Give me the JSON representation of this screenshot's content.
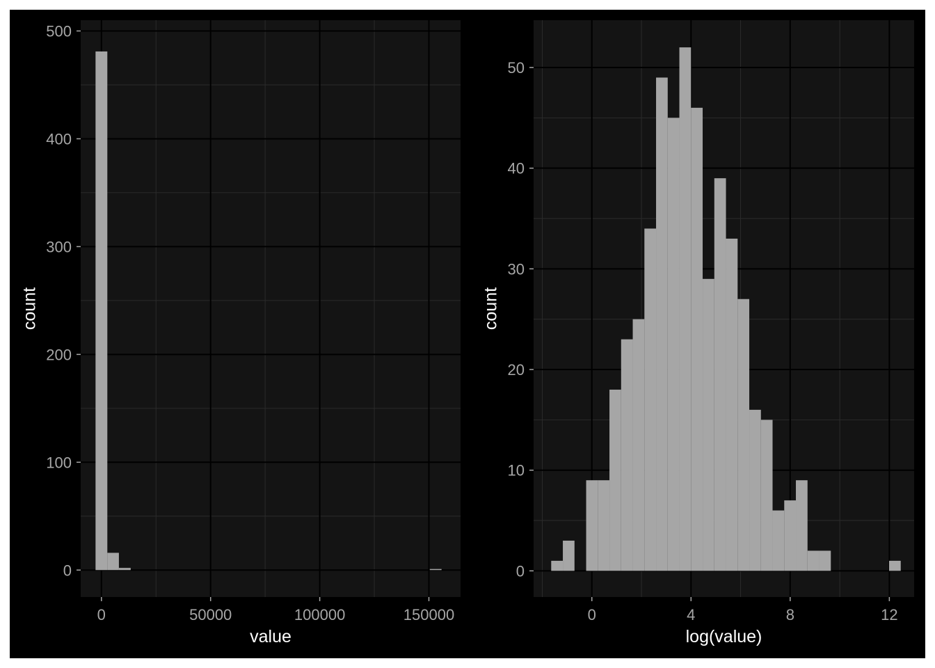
{
  "chart_data": [
    {
      "type": "histogram",
      "xlabel": "value",
      "ylabel": "count",
      "xlim": [
        -9500,
        164500
      ],
      "ylim": [
        -25,
        510
      ],
      "x_ticks": [
        0,
        50000,
        100000,
        150000
      ],
      "y_ticks": [
        0,
        100,
        200,
        300,
        400,
        500
      ],
      "grid": true,
      "bins": [
        {
          "x0": -2700,
          "x1": 2700,
          "count": 481
        },
        {
          "x0": 2700,
          "x1": 8000,
          "count": 16
        },
        {
          "x0": 8000,
          "x1": 13400,
          "count": 2
        },
        {
          "x0": 13400,
          "x1": 18800,
          "count": 0
        },
        {
          "x0": 150400,
          "x1": 155800,
          "count": 1
        }
      ]
    },
    {
      "type": "histogram",
      "xlabel": "log(value)",
      "ylabel": "count",
      "xlim": [
        -2.35,
        13.0
      ],
      "ylim": [
        -2.6,
        54.7
      ],
      "x_ticks": [
        0,
        4,
        8,
        12
      ],
      "y_ticks": [
        0,
        10,
        20,
        30,
        40,
        50
      ],
      "grid": true,
      "bins": [
        {
          "x0": -1.64,
          "x1": -1.17,
          "count": 1
        },
        {
          "x0": -1.17,
          "x1": -0.7,
          "count": 3
        },
        {
          "x0": -0.7,
          "x1": -0.23,
          "count": 0
        },
        {
          "x0": -0.23,
          "x1": 0.24,
          "count": 9
        },
        {
          "x0": 0.24,
          "x1": 0.71,
          "count": 9
        },
        {
          "x0": 0.71,
          "x1": 1.18,
          "count": 18
        },
        {
          "x0": 1.18,
          "x1": 1.65,
          "count": 23
        },
        {
          "x0": 1.65,
          "x1": 2.12,
          "count": 25
        },
        {
          "x0": 2.12,
          "x1": 2.59,
          "count": 34
        },
        {
          "x0": 2.59,
          "x1": 3.06,
          "count": 49
        },
        {
          "x0": 3.06,
          "x1": 3.53,
          "count": 45
        },
        {
          "x0": 3.53,
          "x1": 4.0,
          "count": 52
        },
        {
          "x0": 4.0,
          "x1": 4.47,
          "count": 46
        },
        {
          "x0": 4.47,
          "x1": 4.94,
          "count": 29
        },
        {
          "x0": 4.94,
          "x1": 5.41,
          "count": 39
        },
        {
          "x0": 5.41,
          "x1": 5.88,
          "count": 33
        },
        {
          "x0": 5.88,
          "x1": 6.35,
          "count": 27
        },
        {
          "x0": 6.35,
          "x1": 6.82,
          "count": 16
        },
        {
          "x0": 6.82,
          "x1": 7.29,
          "count": 15
        },
        {
          "x0": 7.29,
          "x1": 7.76,
          "count": 6
        },
        {
          "x0": 7.76,
          "x1": 8.23,
          "count": 7
        },
        {
          "x0": 8.23,
          "x1": 8.7,
          "count": 9
        },
        {
          "x0": 8.7,
          "x1": 9.17,
          "count": 2
        },
        {
          "x0": 9.17,
          "x1": 9.64,
          "count": 2
        },
        {
          "x0": 9.64,
          "x1": 10.11,
          "count": 0
        },
        {
          "x0": 10.11,
          "x1": 10.58,
          "count": 0
        },
        {
          "x0": 10.58,
          "x1": 11.05,
          "count": 0
        },
        {
          "x0": 11.05,
          "x1": 11.52,
          "count": 0
        },
        {
          "x0": 11.52,
          "x1": 11.99,
          "count": 0
        },
        {
          "x0": 11.99,
          "x1": 12.46,
          "count": 1
        }
      ]
    }
  ],
  "colors": {
    "background": "#000000",
    "panel": "#141414",
    "grid_major": "#000000",
    "grid_minor": "#2b2b2b",
    "bar": "#a6a6a6",
    "tick_text": "#a6a6a6",
    "title_text": "#ffffff"
  }
}
